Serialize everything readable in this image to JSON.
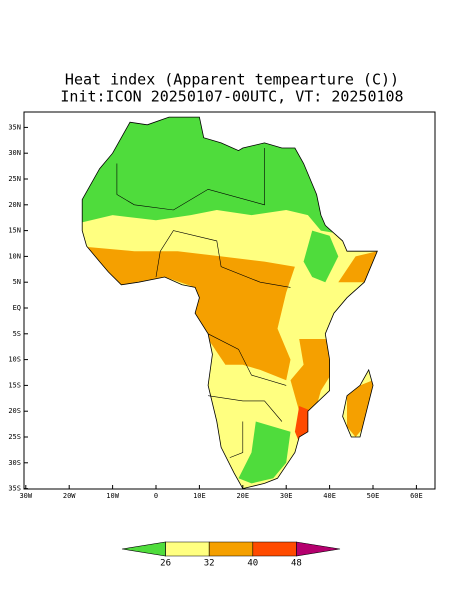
{
  "title": "Heat index (Apparent tempearture (C))",
  "subtitle": "Init:ICON 20250107-00UTC, VT: 20250108",
  "map": {
    "lon_ticks": [
      {
        "value": -30,
        "label": "30W"
      },
      {
        "value": -20,
        "label": "20W"
      },
      {
        "value": -10,
        "label": "10W"
      },
      0,
      {
        "value": 10,
        "label": "10E"
      },
      {
        "value": 20,
        "label": "20E"
      },
      {
        "value": 30,
        "label": "30E"
      },
      {
        "value": 40,
        "label": "40E"
      },
      {
        "value": 50,
        "label": "50E"
      },
      {
        "value": 60,
        "label": "60E"
      }
    ],
    "lat_ticks": [
      {
        "value": -35,
        "label": "35S"
      },
      {
        "value": -30,
        "label": "30S"
      },
      {
        "value": -25,
        "label": "25S"
      },
      {
        "value": -20,
        "label": "20S"
      },
      {
        "value": -15,
        "label": "15S"
      },
      {
        "value": -10,
        "label": "10S"
      },
      {
        "value": -5,
        "label": "5S"
      },
      {
        "value": 0,
        "label": "EQ"
      },
      {
        "value": 5,
        "label": "5N"
      },
      {
        "value": 10,
        "label": "10N"
      },
      {
        "value": 15,
        "label": "15N"
      },
      {
        "value": 20,
        "label": "20N"
      },
      {
        "value": 25,
        "label": "25N"
      },
      {
        "value": 30,
        "label": "30N"
      },
      {
        "value": 35,
        "label": "35N"
      }
    ]
  },
  "colorbar": {
    "levels": [
      26,
      32,
      40,
      48
    ],
    "colors": [
      "#4fdc3c",
      "#ffff80",
      "#f5a000",
      "#ff4b00",
      "#b4006e"
    ]
  }
}
